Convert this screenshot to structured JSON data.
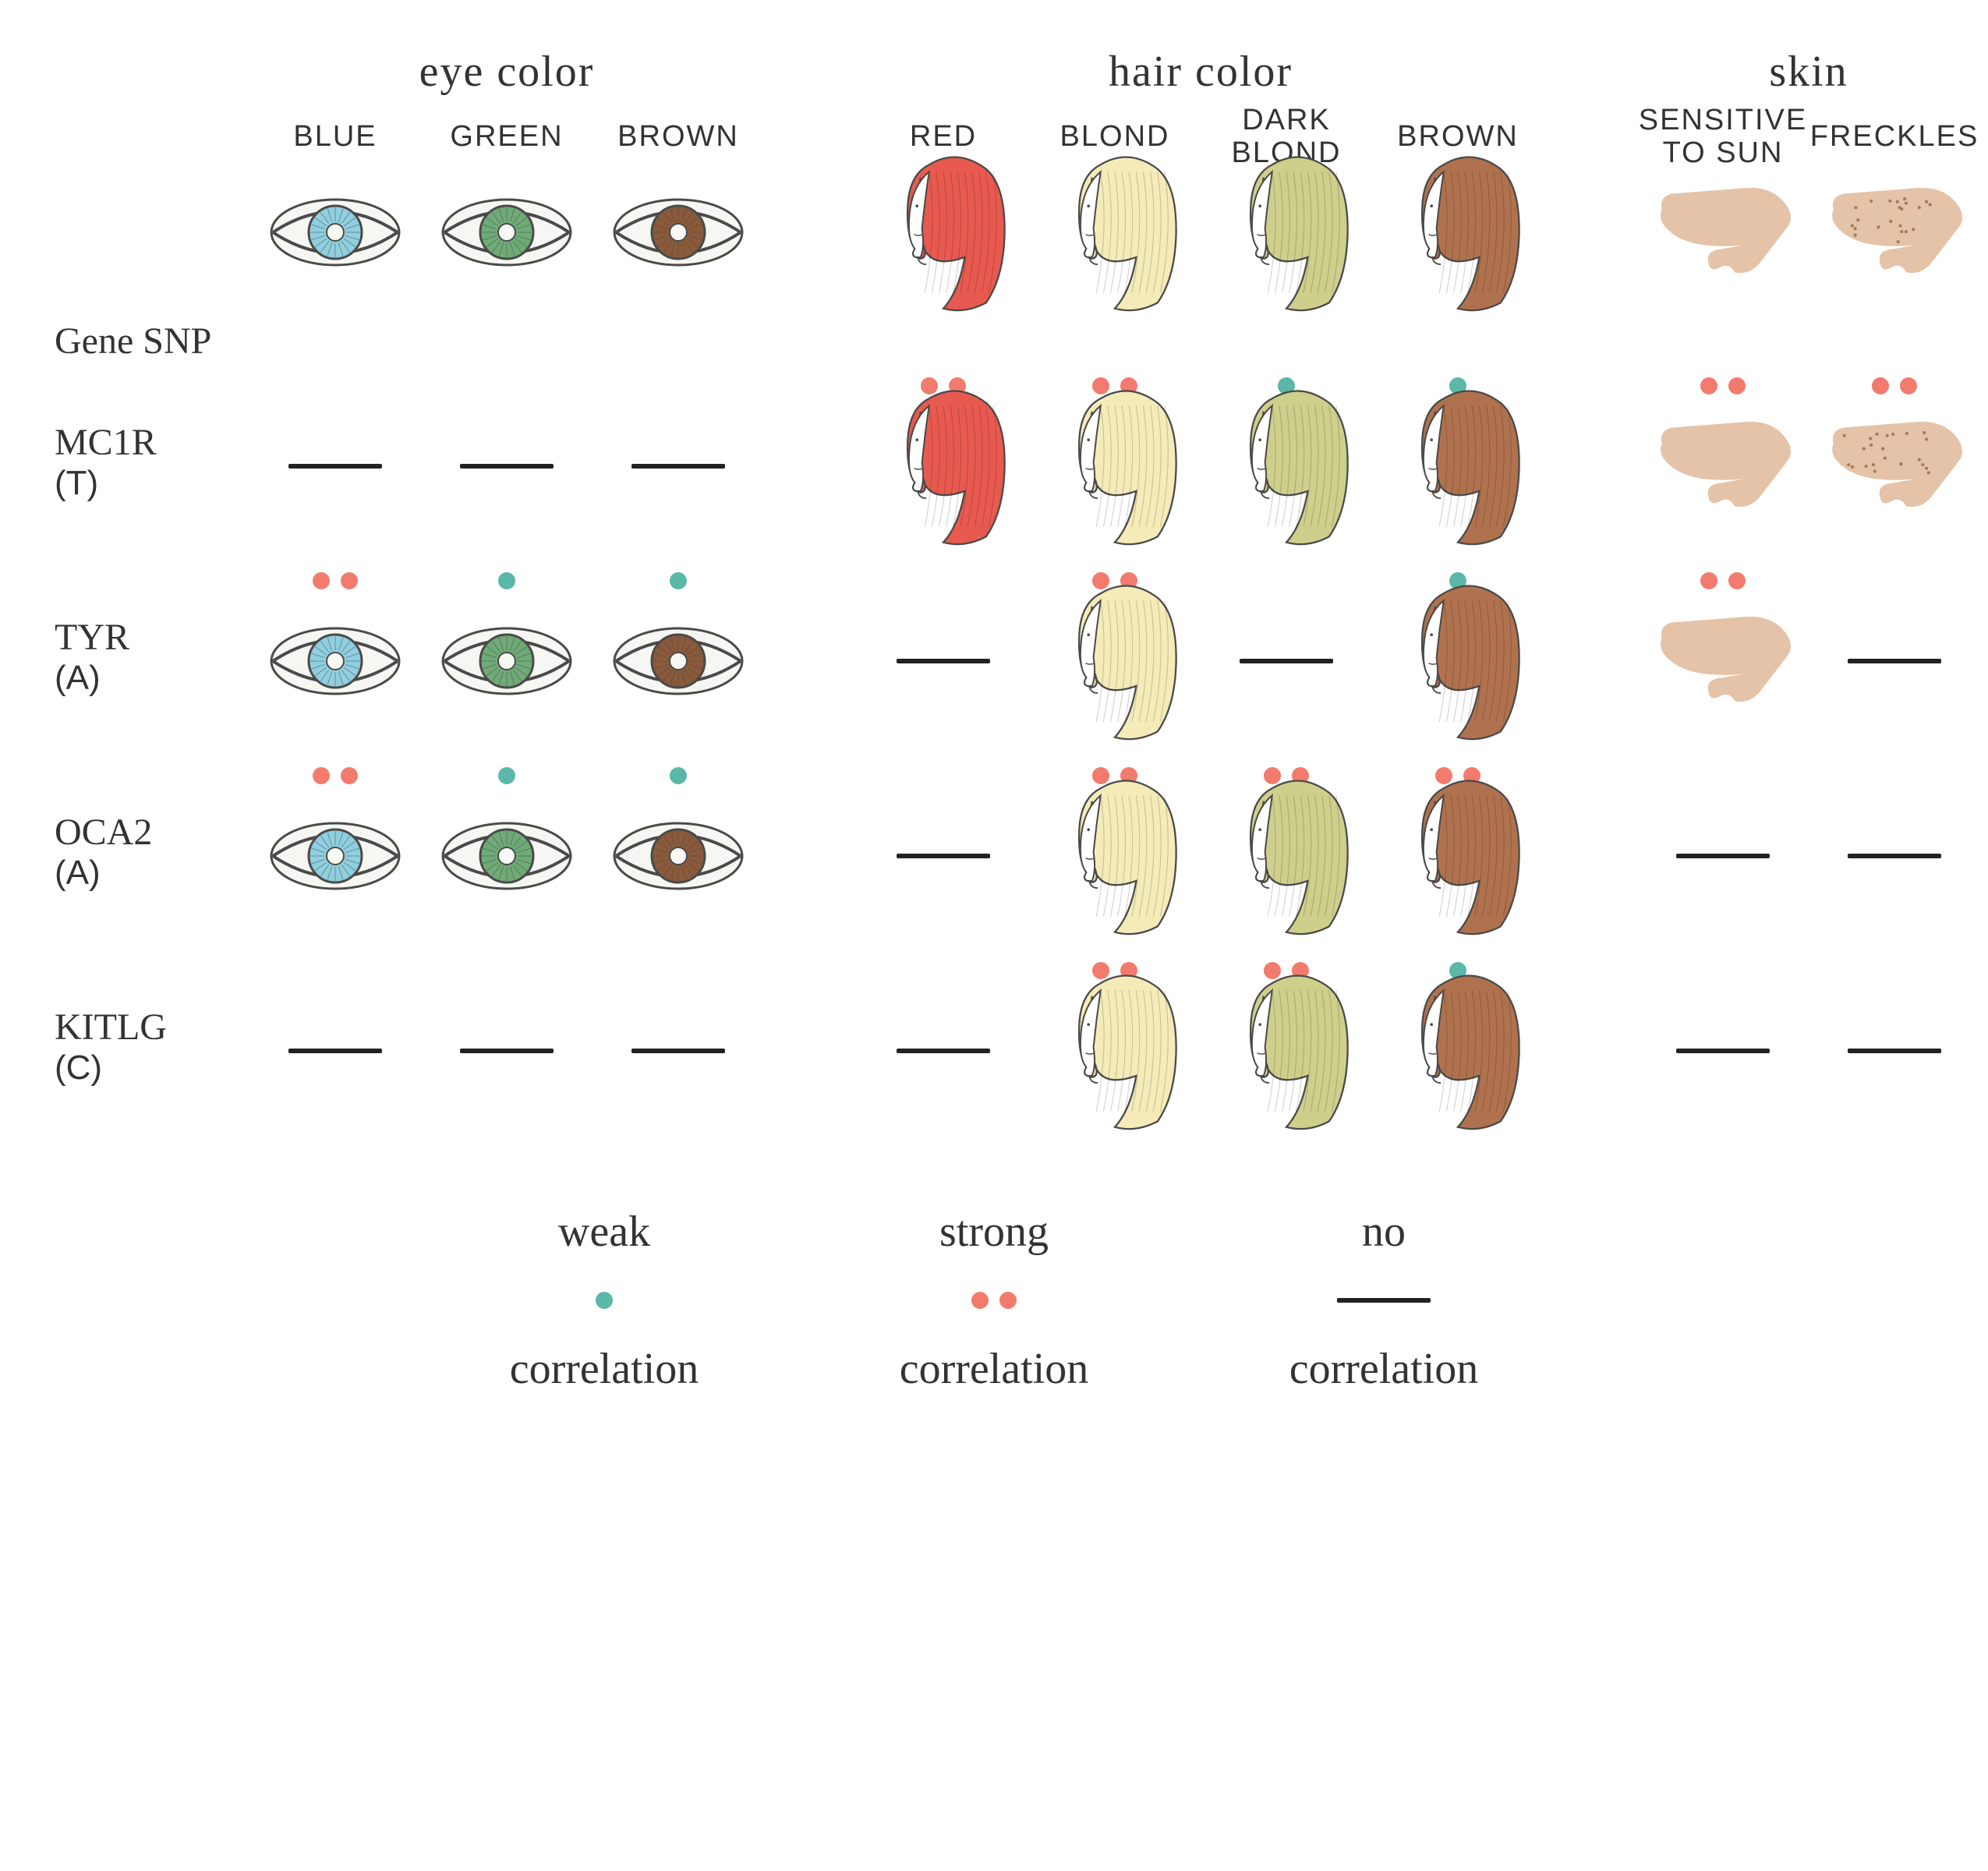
{
  "title_groups": {
    "eye": "eye color",
    "hair": "hair color",
    "skin": "skin"
  },
  "columns": {
    "eye": [
      {
        "key": "blue",
        "label": "BLUE"
      },
      {
        "key": "green",
        "label": "GREEN"
      },
      {
        "key": "brown",
        "label": "BROWN"
      }
    ],
    "hair": [
      {
        "key": "red",
        "label": "RED"
      },
      {
        "key": "blond",
        "label": "BLOND"
      },
      {
        "key": "darkblond",
        "label": "DARK\nBLOND"
      },
      {
        "key": "hbrown",
        "label": "BROWN"
      }
    ],
    "skin": [
      {
        "key": "sun",
        "label": "SENSITIVE\nTO SUN"
      },
      {
        "key": "freckles",
        "label": "FRECKLES"
      }
    ]
  },
  "row_header": "Gene SNP",
  "genes": [
    {
      "name": "MC1R",
      "allele": "(T)",
      "cells": {
        "blue": "none",
        "green": "none",
        "brown": "none",
        "red": "strong",
        "blond": "strong",
        "darkblond": "weak",
        "hbrown": "weak",
        "sun": "strong",
        "freckles": "strong"
      }
    },
    {
      "name": "TYR",
      "allele": "(A)",
      "cells": {
        "blue": "strong",
        "green": "weak",
        "brown": "weak",
        "red": "none",
        "blond": "strong",
        "darkblond": "none",
        "hbrown": "weak",
        "sun": "strong",
        "freckles": "none"
      }
    },
    {
      "name": "OCA2",
      "allele": "(A)",
      "cells": {
        "blue": "strong",
        "green": "weak",
        "brown": "weak",
        "red": "none",
        "blond": "strong",
        "darkblond": "strong",
        "hbrown": "strong",
        "sun": "none",
        "freckles": "none"
      }
    },
    {
      "name": "KITLG",
      "allele": "(C)",
      "cells": {
        "blue": "none",
        "green": "none",
        "brown": "none",
        "red": "none",
        "blond": "strong",
        "darkblond": "strong",
        "hbrown": "weak",
        "sun": "none",
        "freckles": "none"
      }
    }
  ],
  "legend": {
    "weak": {
      "top": "weak",
      "bottom": "correlation"
    },
    "strong": {
      "top": "strong",
      "bottom": "correlation"
    },
    "none": {
      "top": "no",
      "bottom": "correlation"
    }
  },
  "colors": {
    "dot_strong": "#f27b6d",
    "dot_weak": "#5bb7a8",
    "dash": "#2a2a2a",
    "outline": "#4a4a4a",
    "sclera": "#f6f6f2",
    "iris": {
      "blue": "#8fcfe0",
      "green": "#6fab77",
      "brown": "#8a5a3a"
    },
    "hair": {
      "red": "#e85a4f",
      "blond": "#f4ebb8",
      "darkblond": "#cfcf8c",
      "hbrown": "#b0724e"
    },
    "skin": "#e4c3a8",
    "freckle": "#a37a58",
    "face_fill": "#ffffff"
  },
  "style": {
    "group_title_fontsize": 56,
    "col_title_fontsize": 38,
    "row_label_fontsize": 48,
    "legend_fontsize": 56,
    "dot_diameter": 22,
    "dash_width": 120,
    "cell_icon_height": 160
  }
}
